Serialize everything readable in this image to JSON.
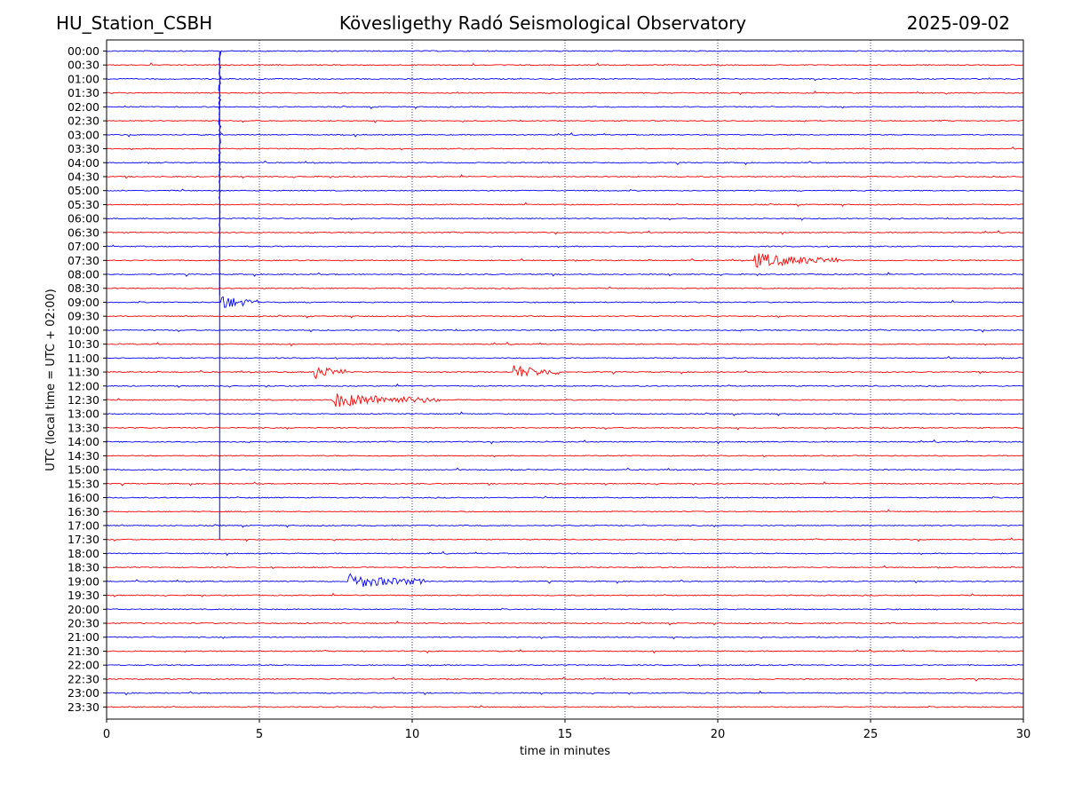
{
  "header": {
    "station": "HU_Station_CSBH",
    "observatory": "Kövesligethy Radó Seismological Observatory",
    "date": "2025-09-02"
  },
  "chart_data": {
    "type": "line",
    "title": "Kövesligethy Radó Seismological Observatory",
    "xlabel": "time in minutes",
    "ylabel": "UTC (local time = UTC + 02:00)",
    "xlim": [
      0,
      30
    ],
    "xticks": [
      0,
      5,
      10,
      15,
      20,
      25,
      30
    ],
    "grid_x": true,
    "row_labels": [
      "00:00",
      "00:30",
      "01:00",
      "01:30",
      "02:00",
      "02:30",
      "03:00",
      "03:30",
      "04:00",
      "04:30",
      "05:00",
      "05:30",
      "06:00",
      "06:30",
      "07:00",
      "07:30",
      "08:00",
      "08:30",
      "09:00",
      "09:30",
      "10:00",
      "10:30",
      "11:00",
      "11:30",
      "12:00",
      "12:30",
      "13:00",
      "13:30",
      "14:00",
      "14:30",
      "15:00",
      "15:30",
      "16:00",
      "16:30",
      "17:00",
      "17:30",
      "18:00",
      "18:30",
      "19:00",
      "19:30",
      "20:00",
      "20:30",
      "21:00",
      "21:30",
      "22:00",
      "22:30",
      "23:00",
      "23:30"
    ],
    "colors": {
      "even_rows": "#0000ff",
      "odd_rows": "#ff0000",
      "grid": "#000080"
    },
    "events": [
      {
        "row": "00:00",
        "minute": 3.7,
        "type": "spike",
        "span_to_row": "17:30"
      },
      {
        "row": "09:00",
        "minute": 3.75,
        "type": "burst",
        "duration_min": 1.2
      },
      {
        "row": "11:30",
        "minute": 6.8,
        "type": "burst",
        "duration_min": 1.0
      },
      {
        "row": "12:30",
        "minute": 7.4,
        "type": "burst",
        "duration_min": 3.5
      },
      {
        "row": "19:00",
        "minute": 7.9,
        "type": "burst",
        "duration_min": 2.5
      },
      {
        "row": "07:30",
        "minute": 21.2,
        "type": "burst",
        "duration_min": 2.8
      },
      {
        "row": "11:30",
        "minute": 13.3,
        "type": "burst",
        "duration_min": 1.5
      }
    ]
  }
}
